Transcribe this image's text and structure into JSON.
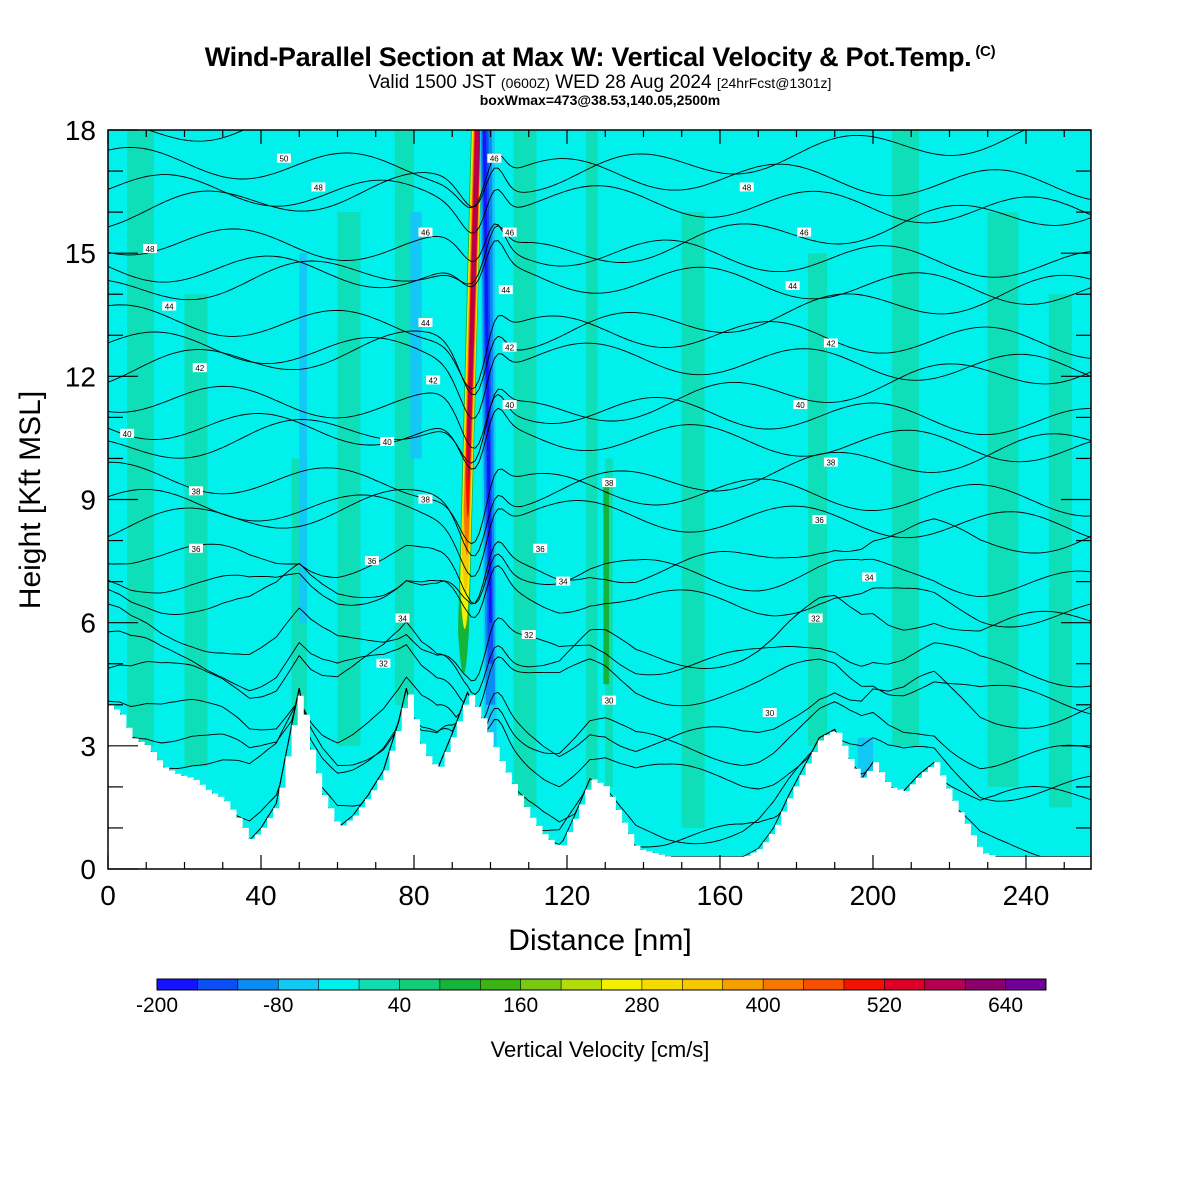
{
  "header": {
    "title": "Wind-Parallel Section at Max W: Vertical Velocity & Pot.Temp.",
    "copyright": "(C)",
    "valid_prefix": "Valid 1500 JST",
    "valid_zulu": "(0600Z)",
    "valid_date": "WED 28 Aug 2024",
    "forecast": "[24hrFcst@1301z]",
    "box_info": "boxWmax=473@38.53,140.05,2500m"
  },
  "colorbar": {
    "label": "Vertical Velocity [cm/s]",
    "tick_labels": [
      "-200",
      "-80",
      "40",
      "160",
      "280",
      "400",
      "520",
      "640"
    ],
    "colors": [
      "#1414ff",
      "#0a50f5",
      "#0a8cf5",
      "#14c8f5",
      "#00f0ec",
      "#10dcb0",
      "#12cc78",
      "#14b43a",
      "#3cb414",
      "#78c814",
      "#b4dc0a",
      "#f0f000",
      "#f5dc00",
      "#f5c800",
      "#f5a000",
      "#f57800",
      "#f55000",
      "#f01400",
      "#dc0028",
      "#b40050",
      "#8c006e",
      "#6e0096"
    ]
  },
  "chart_data": {
    "type": "heatmap",
    "title": "Wind-Parallel Section at Max W: Vertical Velocity & Pot.Temp.",
    "xlabel": "Distance [nm]",
    "ylabel": "Height [Kft MSL]",
    "xlim": [
      0,
      257
    ],
    "ylim": [
      0,
      18
    ],
    "x_ticks": [
      0,
      40,
      80,
      120,
      160,
      200,
      240
    ],
    "y_ticks": [
      0,
      3,
      6,
      9,
      12,
      15,
      18
    ],
    "background_fill": "#00f0ec",
    "colorbar_range": [
      -200,
      700
    ],
    "colorbar_step": 40,
    "terrain_kft": {
      "x": [
        0,
        3,
        6,
        10,
        14,
        18,
        22,
        26,
        30,
        34,
        37,
        40,
        44,
        48,
        50,
        53,
        56,
        60,
        64,
        68,
        72,
        76,
        78,
        82,
        86,
        90,
        94,
        98,
        102,
        106,
        110,
        114,
        118,
        122,
        126,
        130,
        134,
        138,
        142,
        146,
        150,
        154,
        158,
        162,
        166,
        170,
        174,
        178,
        182,
        186,
        190,
        194,
        197,
        200,
        204,
        208,
        212,
        216,
        220,
        224,
        228,
        232,
        236,
        240,
        244,
        248,
        252,
        257
      ],
      "y": [
        4.0,
        3.8,
        3.2,
        3.0,
        2.5,
        2.3,
        2.2,
        1.9,
        1.7,
        1.2,
        0.7,
        1.0,
        1.6,
        3.5,
        4.4,
        2.8,
        1.8,
        1.0,
        1.3,
        1.8,
        2.4,
        3.6,
        4.4,
        2.9,
        2.4,
        3.3,
        4.3,
        3.6,
        2.7,
        2.0,
        1.3,
        0.8,
        0.5,
        1.3,
        2.2,
        2.0,
        1.2,
        0.5,
        0.4,
        0.3,
        0.3,
        0.3,
        0.3,
        0.3,
        0.3,
        0.5,
        1.0,
        1.8,
        2.5,
        3.2,
        3.4,
        2.6,
        2.2,
        2.6,
        2.0,
        1.9,
        2.3,
        2.6,
        1.8,
        1.1,
        0.4,
        0.3,
        0.3,
        0.3,
        0.3,
        0.3,
        0.3,
        0.3
      ]
    },
    "updraft_core": {
      "x_base": 93,
      "x_top": 97,
      "y_bottom": 4.5,
      "y_top": 18,
      "peak_cm_s": 473,
      "downdraft_x": 100,
      "downdraft_min_cm_s": -200
    },
    "theta_contours_c": [
      30,
      32,
      34,
      36,
      38,
      40,
      42,
      44,
      46,
      48,
      50
    ],
    "contour_labels": [
      {
        "text": "50",
        "x": 46,
        "y": 17.3
      },
      {
        "text": "48",
        "x": 55,
        "y": 16.6
      },
      {
        "text": "48",
        "x": 11,
        "y": 15.1
      },
      {
        "text": "46",
        "x": 83,
        "y": 15.5
      },
      {
        "text": "46",
        "x": 101,
        "y": 17.3
      },
      {
        "text": "48",
        "x": 167,
        "y": 16.6
      },
      {
        "text": "46",
        "x": 182,
        "y": 15.5
      },
      {
        "text": "46",
        "x": 105,
        "y": 15.5
      },
      {
        "text": "44",
        "x": 16,
        "y": 13.7
      },
      {
        "text": "44",
        "x": 83,
        "y": 13.3
      },
      {
        "text": "44",
        "x": 104,
        "y": 14.1
      },
      {
        "text": "44",
        "x": 179,
        "y": 14.2
      },
      {
        "text": "42",
        "x": 24,
        "y": 12.2
      },
      {
        "text": "42",
        "x": 85,
        "y": 11.9
      },
      {
        "text": "42",
        "x": 105,
        "y": 12.7
      },
      {
        "text": "42",
        "x": 189,
        "y": 12.8
      },
      {
        "text": "40",
        "x": 5,
        "y": 10.6
      },
      {
        "text": "40",
        "x": 73,
        "y": 10.4
      },
      {
        "text": "40",
        "x": 105,
        "y": 11.3
      },
      {
        "text": "40",
        "x": 181,
        "y": 11.3
      },
      {
        "text": "38",
        "x": 23,
        "y": 9.2
      },
      {
        "text": "38",
        "x": 83,
        "y": 9.0
      },
      {
        "text": "38",
        "x": 131,
        "y": 9.4
      },
      {
        "text": "38",
        "x": 189,
        "y": 9.9
      },
      {
        "text": "36",
        "x": 23,
        "y": 7.8
      },
      {
        "text": "36",
        "x": 69,
        "y": 7.5
      },
      {
        "text": "36",
        "x": 113,
        "y": 7.8
      },
      {
        "text": "36",
        "x": 186,
        "y": 8.5
      },
      {
        "text": "34",
        "x": 77,
        "y": 6.1
      },
      {
        "text": "34",
        "x": 119,
        "y": 7.0
      },
      {
        "text": "34",
        "x": 199,
        "y": 7.1
      },
      {
        "text": "32",
        "x": 72,
        "y": 5.0
      },
      {
        "text": "32",
        "x": 110,
        "y": 5.7
      },
      {
        "text": "32",
        "x": 185,
        "y": 6.1
      },
      {
        "text": "30",
        "x": 131,
        "y": 4.1
      },
      {
        "text": "30",
        "x": 173,
        "y": 3.8
      }
    ]
  }
}
